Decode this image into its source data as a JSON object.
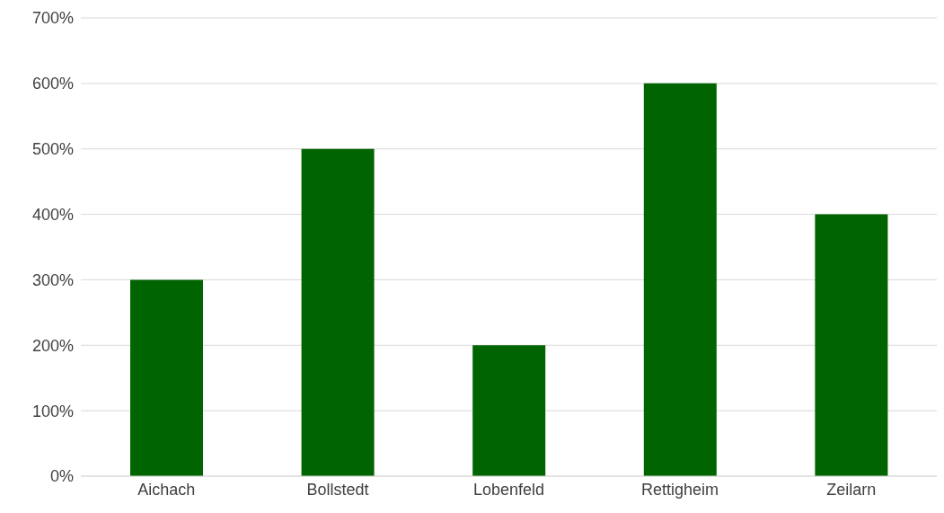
{
  "chart_data": {
    "type": "bar",
    "categories": [
      "Aichach",
      "Bollstedt",
      "Lobenfeld",
      "Rettigheim",
      "Zeilarn"
    ],
    "values": [
      300,
      500,
      200,
      600,
      400
    ],
    "color": "#006400",
    "ylim": [
      0,
      700
    ],
    "yticks": [
      {
        "value": 0,
        "label": "0%"
      },
      {
        "value": 100,
        "label": "100%"
      },
      {
        "value": 200,
        "label": "200%"
      },
      {
        "value": 300,
        "label": "300%"
      },
      {
        "value": 400,
        "label": "400%"
      },
      {
        "value": 500,
        "label": "500%"
      },
      {
        "value": 600,
        "label": "600%"
      },
      {
        "value": 700,
        "label": "700%"
      }
    ],
    "grid": "y"
  }
}
